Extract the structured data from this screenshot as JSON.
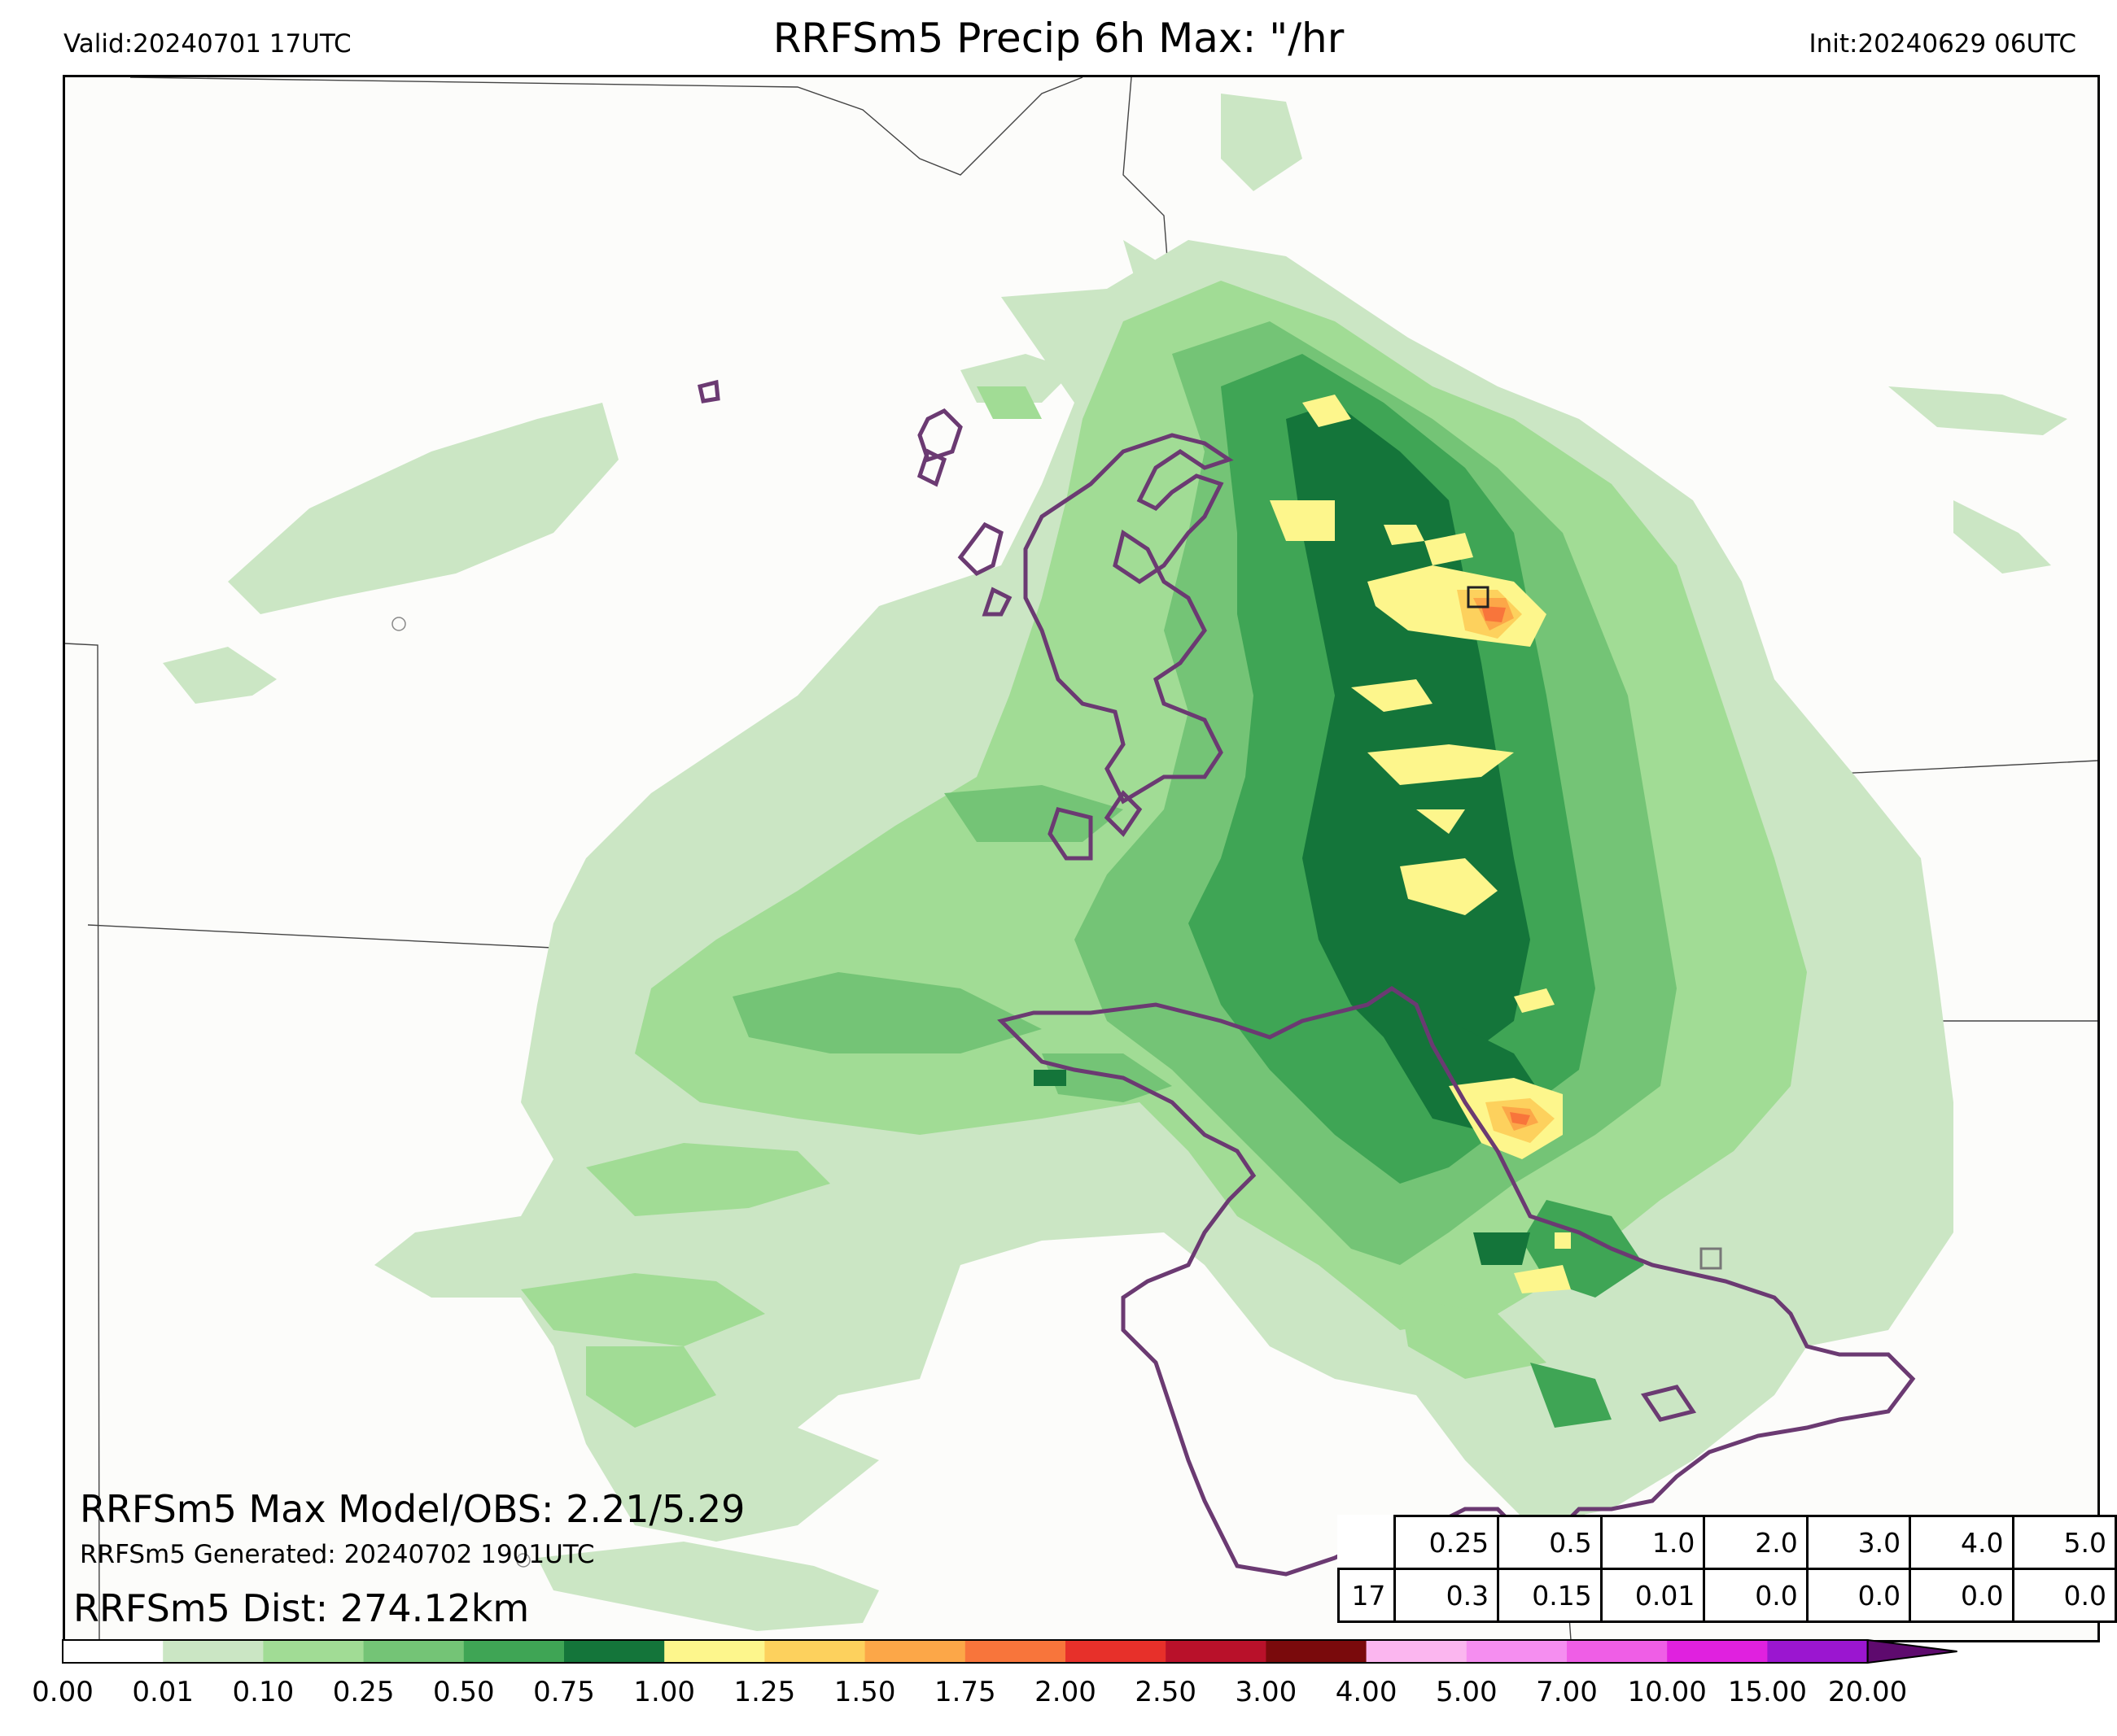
{
  "header": {
    "valid": "Valid:20240701 17UTC",
    "title": "RRFSm5 Precip 6h Max: \"/hr",
    "init": "Init:20240629 06UTC"
  },
  "annotations": {
    "max_line": "RRFSm5 Max Model/OBS: 2.21/5.29",
    "generated_line": "RRFSm5 Generated: 20240702 1901UTC",
    "dist_line": "RRFSm5 Dist: 274.12km"
  },
  "stats_table": {
    "thresholds": [
      "0.25",
      "0.5",
      "1.0",
      "2.0",
      "3.0",
      "4.0",
      "5.0"
    ],
    "row_label": "17",
    "values": [
      "0.3",
      "0.15",
      "0.01",
      "0.0",
      "0.0",
      "0.0",
      "0.0"
    ]
  },
  "colorbar": {
    "ticks": [
      "0.00",
      "0.01",
      "0.10",
      "0.25",
      "0.50",
      "0.75",
      "1.00",
      "1.25",
      "1.50",
      "1.75",
      "2.00",
      "2.50",
      "3.00",
      "4.00",
      "5.00",
      "7.00",
      "10.00",
      "15.00",
      "20.00"
    ],
    "colors": [
      "#ffffff",
      "#cbe6c4",
      "#a1dc95",
      "#74c476",
      "#3fa555",
      "#14753a",
      "#fdf68c",
      "#fdd15d",
      "#fca748",
      "#f8753b",
      "#e7302a",
      "#b9112a",
      "#7a0a0c",
      "#fbb6ef",
      "#f58ef0",
      "#ef5ee6",
      "#e021df",
      "#9b16d0",
      "#5e0a6e"
    ]
  }
}
